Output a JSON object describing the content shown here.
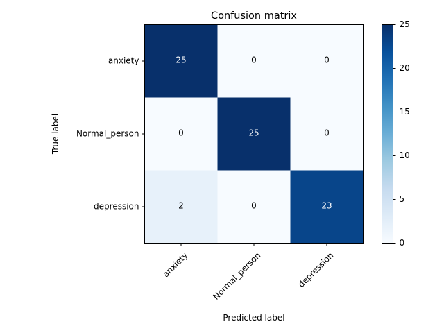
{
  "chart_data": {
    "type": "heatmap",
    "title": "Confusion matrix",
    "xlabel": "Predicted label",
    "ylabel": "True label",
    "x_categories": [
      "anxiety",
      "Normal_person",
      "depression"
    ],
    "y_categories": [
      "anxiety",
      "Normal_person",
      "depression"
    ],
    "values": [
      [
        25,
        0,
        0
      ],
      [
        0,
        25,
        0
      ],
      [
        2,
        0,
        23
      ]
    ],
    "colormap": "Blues",
    "color_range": [
      0,
      25
    ],
    "colorbar_ticks": [
      "0",
      "5",
      "10",
      "15",
      "20",
      "25"
    ],
    "text_colors": {
      "light_cell": "#000000",
      "dark_cell": "#ffffff"
    }
  }
}
